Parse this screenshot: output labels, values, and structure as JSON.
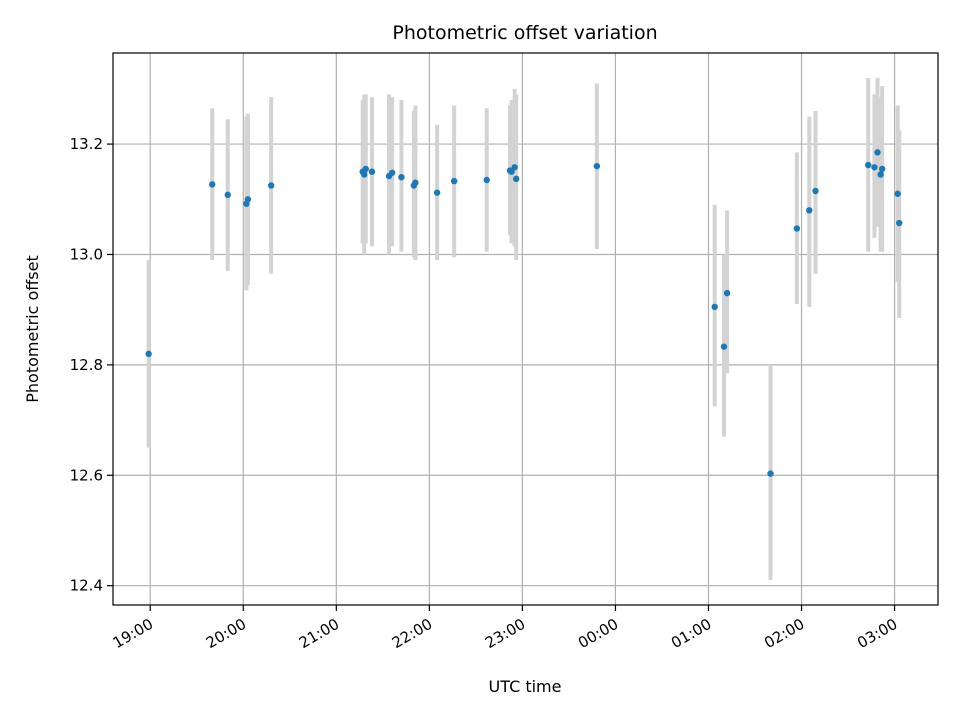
{
  "chart_data": {
    "type": "scatter",
    "title": "Photometric offset variation",
    "xlabel": "UTC time",
    "ylabel": "Photometric offset",
    "x_axis": "time (UTC, 2024-night span)",
    "xlim": [
      "18:36",
      "03:28"
    ],
    "ylim": [
      12.365,
      13.365
    ],
    "grid": true,
    "x_ticks": [
      {
        "time": "19:00",
        "label": "19:00"
      },
      {
        "time": "20:00",
        "label": "20:00"
      },
      {
        "time": "21:00",
        "label": "21:00"
      },
      {
        "time": "22:00",
        "label": "22:00"
      },
      {
        "time": "23:00",
        "label": "23:00"
      },
      {
        "time": "00:00",
        "label": "00:00"
      },
      {
        "time": "01:00",
        "label": "01:00"
      },
      {
        "time": "02:00",
        "label": "02:00"
      },
      {
        "time": "03:00",
        "label": "03:00"
      }
    ],
    "y_ticks": [
      12.4,
      12.6,
      12.8,
      13.0,
      13.2
    ],
    "y_tick_labels": [
      "12.4",
      "12.6",
      "12.8",
      "13.0",
      "13.2"
    ],
    "marker_color": "#1f77b4",
    "errorbar_color": "#d3d3d3",
    "points": [
      {
        "time": "18:59",
        "y": 12.82,
        "low": 12.65,
        "high": 12.99
      },
      {
        "time": "19:40",
        "y": 13.127,
        "low": 12.99,
        "high": 13.265
      },
      {
        "time": "19:50",
        "y": 13.108,
        "low": 12.97,
        "high": 13.245
      },
      {
        "time": "20:02",
        "y": 13.092,
        "low": 12.935,
        "high": 13.25
      },
      {
        "time": "20:03",
        "y": 13.1,
        "low": 12.945,
        "high": 13.255
      },
      {
        "time": "20:18",
        "y": 13.125,
        "low": 12.965,
        "high": 13.285
      },
      {
        "time": "21:17",
        "y": 13.15,
        "low": 13.02,
        "high": 13.28
      },
      {
        "time": "21:18",
        "y": 13.145,
        "low": 13.0,
        "high": 13.29
      },
      {
        "time": "21:19",
        "y": 13.155,
        "low": 13.02,
        "high": 13.29
      },
      {
        "time": "21:23",
        "y": 13.15,
        "low": 13.015,
        "high": 13.285
      },
      {
        "time": "21:34",
        "y": 13.142,
        "low": 13.0,
        "high": 13.29
      },
      {
        "time": "21:36",
        "y": 13.148,
        "low": 13.015,
        "high": 13.285
      },
      {
        "time": "21:42",
        "y": 13.14,
        "low": 13.005,
        "high": 13.28
      },
      {
        "time": "21:50",
        "y": 13.125,
        "low": 12.995,
        "high": 13.26
      },
      {
        "time": "21:51",
        "y": 13.13,
        "low": 12.99,
        "high": 13.27
      },
      {
        "time": "22:05",
        "y": 13.112,
        "low": 12.99,
        "high": 13.235
      },
      {
        "time": "22:16",
        "y": 13.133,
        "low": 12.995,
        "high": 13.27
      },
      {
        "time": "22:37",
        "y": 13.135,
        "low": 13.005,
        "high": 13.265
      },
      {
        "time": "22:52",
        "y": 13.152,
        "low": 13.035,
        "high": 13.27
      },
      {
        "time": "22:53",
        "y": 13.15,
        "low": 13.02,
        "high": 13.28
      },
      {
        "time": "22:55",
        "y": 13.158,
        "low": 13.015,
        "high": 13.3
      },
      {
        "time": "22:56",
        "y": 13.137,
        "low": 12.99,
        "high": 13.29
      },
      {
        "time": "23:48",
        "y": 13.16,
        "low": 13.01,
        "high": 13.31
      },
      {
        "time": "01:04",
        "y": 12.905,
        "low": 12.725,
        "high": 13.09
      },
      {
        "time": "01:10",
        "y": 12.833,
        "low": 12.67,
        "high": 13.0
      },
      {
        "time": "01:12",
        "y": 12.93,
        "low": 12.785,
        "high": 13.08
      },
      {
        "time": "01:40",
        "y": 12.603,
        "low": 12.41,
        "high": 12.8
      },
      {
        "time": "01:57",
        "y": 13.047,
        "low": 12.91,
        "high": 13.185
      },
      {
        "time": "02:05",
        "y": 13.08,
        "low": 12.905,
        "high": 13.25
      },
      {
        "time": "02:09",
        "y": 13.115,
        "low": 12.965,
        "high": 13.26
      },
      {
        "time": "02:43",
        "y": 13.162,
        "low": 13.005,
        "high": 13.32
      },
      {
        "time": "02:47",
        "y": 13.158,
        "low": 13.03,
        "high": 13.29
      },
      {
        "time": "02:49",
        "y": 13.185,
        "low": 13.05,
        "high": 13.32
      },
      {
        "time": "02:51",
        "y": 13.145,
        "low": 13.005,
        "high": 13.285
      },
      {
        "time": "02:52",
        "y": 13.155,
        "low": 13.005,
        "high": 13.305
      },
      {
        "time": "03:02",
        "y": 13.11,
        "low": 12.95,
        "high": 13.27
      },
      {
        "time": "03:03",
        "y": 13.057,
        "low": 12.885,
        "high": 13.225
      }
    ]
  }
}
